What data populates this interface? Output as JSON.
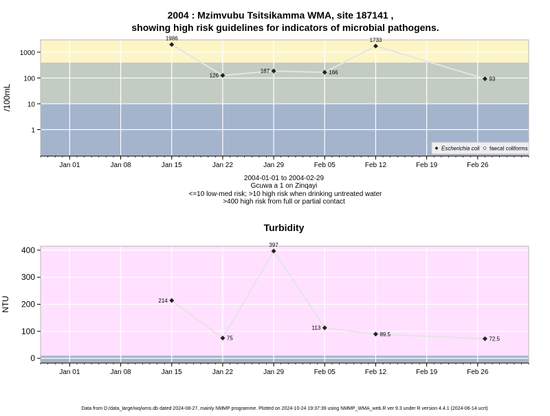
{
  "page": {
    "title_line1": "2004 : Mzimvubu Tsitsikamma WMA, site 187141 ,",
    "title_line2": "showing high risk guidelines for indicators of microbial pathogens.",
    "caption": {
      "range": "2004-01-01 to 2004-02-29",
      "site": "Gcuwa a 1 on Zinqayi",
      "risk1": "<=10 low-med risk; >10 high risk when drinking untreated water",
      "risk2": ">400 high risk from full or partial contact"
    },
    "footer": "Data from D:/data_large/wq/wms.db dated 2024-08-27, mainly NMMP programme. Plotted on 2024-10-24 19:37:39 using NMMP_WMA_web.R ver 9.3 under R version 4.4.1 (2024-06-14 ucrt)"
  },
  "chart_data": [
    {
      "type": "line",
      "title": "",
      "ylabel": "/100mL",
      "y_scale": "log",
      "ylim": [
        0.1,
        3000
      ],
      "y_ticks": [
        1,
        10,
        100,
        1000
      ],
      "y_tick_labels": [
        "1",
        "10",
        "100",
        "1000"
      ],
      "xlim": [
        "2003-12-28",
        "2004-03-04"
      ],
      "x_ticks": [
        "2004-01-01",
        "2004-01-08",
        "2004-01-15",
        "2004-01-22",
        "2004-01-29",
        "2004-02-05",
        "2004-02-12",
        "2004-02-19",
        "2004-02-26"
      ],
      "x_tick_labels": [
        "Jan 01",
        "Jan 08",
        "Jan 15",
        "Jan 22",
        "Jan 29",
        "Feb 05",
        "Feb 12",
        "Feb 19",
        "Feb 26"
      ],
      "grid": true,
      "legend_position": "bottom-right",
      "bands": [
        {
          "from": 0.1,
          "to": 10,
          "color": "#a4b4cc"
        },
        {
          "from": 10,
          "to": 400,
          "color": "#c3ccc2"
        },
        {
          "from": 400,
          "to": 3000,
          "color": "#fdf5c6"
        }
      ],
      "series": [
        {
          "name": "Escherichia coli",
          "italic": true,
          "marker": "diamond",
          "color": "#222222",
          "line_color": "#e4e4e4",
          "points": [
            {
              "x": "2004-01-15",
              "y": 1986,
              "label": "1986",
              "label_pos": "above"
            },
            {
              "x": "2004-01-22",
              "y": 126,
              "label": "126",
              "label_pos": "left"
            },
            {
              "x": "2004-01-29",
              "y": 187,
              "label": "187",
              "label_pos": "left"
            },
            {
              "x": "2004-02-05",
              "y": 166,
              "label": "166",
              "label_pos": "right"
            },
            {
              "x": "2004-02-12",
              "y": 1733,
              "label": "1733",
              "label_pos": "above"
            },
            {
              "x": "2004-02-27",
              "y": 93,
              "label": "93",
              "label_pos": "right"
            }
          ]
        },
        {
          "name": "faecal coliforms",
          "italic": false,
          "marker": "circle-open",
          "color": "#555555",
          "points": []
        }
      ]
    },
    {
      "type": "line",
      "title": "Turbidity",
      "ylabel": "NTU",
      "y_scale": "linear",
      "ylim": [
        -15,
        415
      ],
      "y_ticks": [
        0,
        100,
        200,
        300,
        400
      ],
      "y_tick_labels": [
        "0",
        "100",
        "200",
        "300",
        "400"
      ],
      "xlim": [
        "2003-12-28",
        "2004-03-04"
      ],
      "x_ticks": [
        "2004-01-01",
        "2004-01-08",
        "2004-01-15",
        "2004-01-22",
        "2004-01-29",
        "2004-02-05",
        "2004-02-12",
        "2004-02-19",
        "2004-02-26"
      ],
      "x_tick_labels": [
        "Jan 01",
        "Jan 08",
        "Jan 15",
        "Jan 22",
        "Jan 29",
        "Feb 05",
        "Feb 12",
        "Feb 19",
        "Feb 26"
      ],
      "grid": true,
      "bands": [
        {
          "from": -15,
          "to": 10,
          "color": "#a4b4cc"
        },
        {
          "from": 10,
          "to": 415,
          "color": "#ffe0ff"
        }
      ],
      "series": [
        {
          "name": "",
          "marker": "diamond",
          "color": "#222222",
          "line_color": "#e4e4e4",
          "points": [
            {
              "x": "2004-01-15",
              "y": 214,
              "label": "214",
              "label_pos": "left"
            },
            {
              "x": "2004-01-22",
              "y": 75,
              "label": "75",
              "label_pos": "right"
            },
            {
              "x": "2004-01-29",
              "y": 397,
              "label": "397",
              "label_pos": "above"
            },
            {
              "x": "2004-02-05",
              "y": 113,
              "label": "113",
              "label_pos": "left"
            },
            {
              "x": "2004-02-12",
              "y": 89.5,
              "label": "89.5",
              "label_pos": "right"
            },
            {
              "x": "2004-02-27",
              "y": 72.5,
              "label": "72.5",
              "label_pos": "right"
            }
          ]
        }
      ]
    }
  ]
}
